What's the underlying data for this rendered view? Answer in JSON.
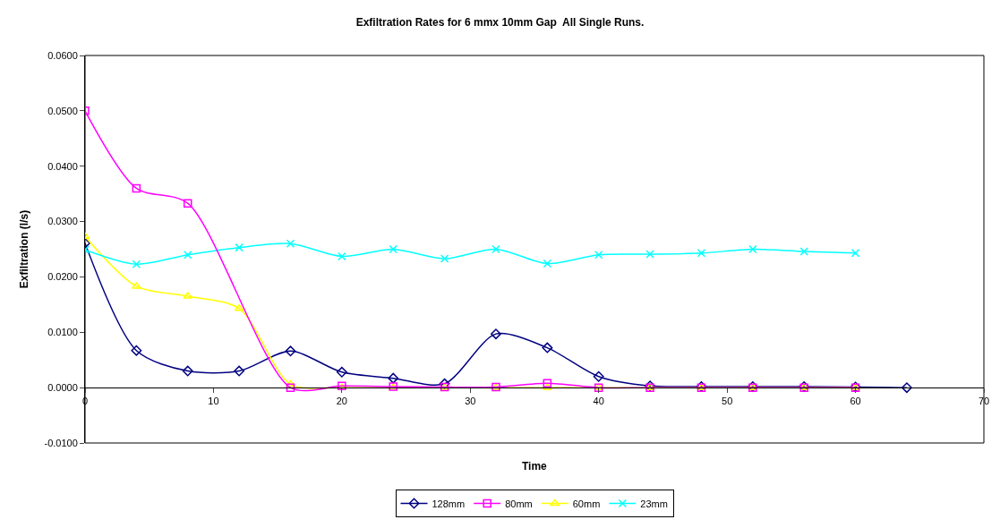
{
  "chart_data": {
    "type": "line",
    "title": "Exfiltration Rates for 6 mmx 10mm Gap  All Single Runs.",
    "xlabel": "Time",
    "ylabel": "Exfiltration (l/s)",
    "x": [
      0,
      4,
      8,
      12,
      16,
      20,
      24,
      28,
      32,
      36,
      40,
      44,
      48,
      52,
      56,
      60,
      64
    ],
    "series": [
      {
        "name": "128mm",
        "color": "#000080",
        "marker": "diamond",
        "values": [
          0.0261,
          0.0067,
          0.003,
          0.003,
          0.0066,
          0.0028,
          0.0017,
          0.0007,
          0.0097,
          0.0072,
          0.002,
          0.0003,
          0.0002,
          0.0002,
          0.0002,
          0.0001,
          0.0
        ]
      },
      {
        "name": "80mm",
        "color": "#ff00ff",
        "marker": "square",
        "x": [
          0,
          4,
          8,
          16,
          20,
          24,
          28,
          32,
          36,
          40,
          44,
          48,
          52,
          56,
          60
        ],
        "values": [
          0.05,
          0.036,
          0.0333,
          0.0,
          0.0003,
          0.0002,
          0.0001,
          0.0001,
          0.0008,
          0.0,
          0.0,
          0.0,
          0.0,
          0.0,
          0.0
        ]
      },
      {
        "name": "60mm",
        "color": "#ffff00",
        "marker": "triangle",
        "values": [
          0.0273,
          0.0183,
          0.0165,
          0.0143,
          0.0006,
          0.0,
          0.0,
          0.0,
          0.0,
          0.0,
          0.0,
          0.0,
          0.0,
          0.0,
          0.0,
          0.0,
          null
        ]
      },
      {
        "name": "23mm",
        "color": "#00ffff",
        "marker": "cross",
        "values": [
          0.0249,
          0.0223,
          0.024,
          0.0253,
          0.026,
          0.0237,
          0.025,
          0.0233,
          0.025,
          0.0224,
          0.024,
          0.0241,
          0.0243,
          0.025,
          0.0246,
          0.0243,
          null
        ]
      }
    ],
    "xlim": [
      0,
      70
    ],
    "xticks": [
      0,
      10,
      20,
      30,
      40,
      50,
      60,
      70
    ],
    "ylim": [
      -0.01,
      0.06
    ],
    "yticks": [
      {
        "value": -0.01,
        "label": "-0.0100"
      },
      {
        "value": 0,
        "label": "0.0000"
      },
      {
        "value": 0.01,
        "label": "0.0100"
      },
      {
        "value": 0.02,
        "label": "0.0200"
      },
      {
        "value": 0.03,
        "label": "0.0300"
      },
      {
        "value": 0.04,
        "label": "0.0400"
      },
      {
        "value": 0.05,
        "label": "0.0500"
      },
      {
        "value": 0.06,
        "label": "0.0600"
      }
    ],
    "grid": false,
    "legend": "bottom"
  }
}
